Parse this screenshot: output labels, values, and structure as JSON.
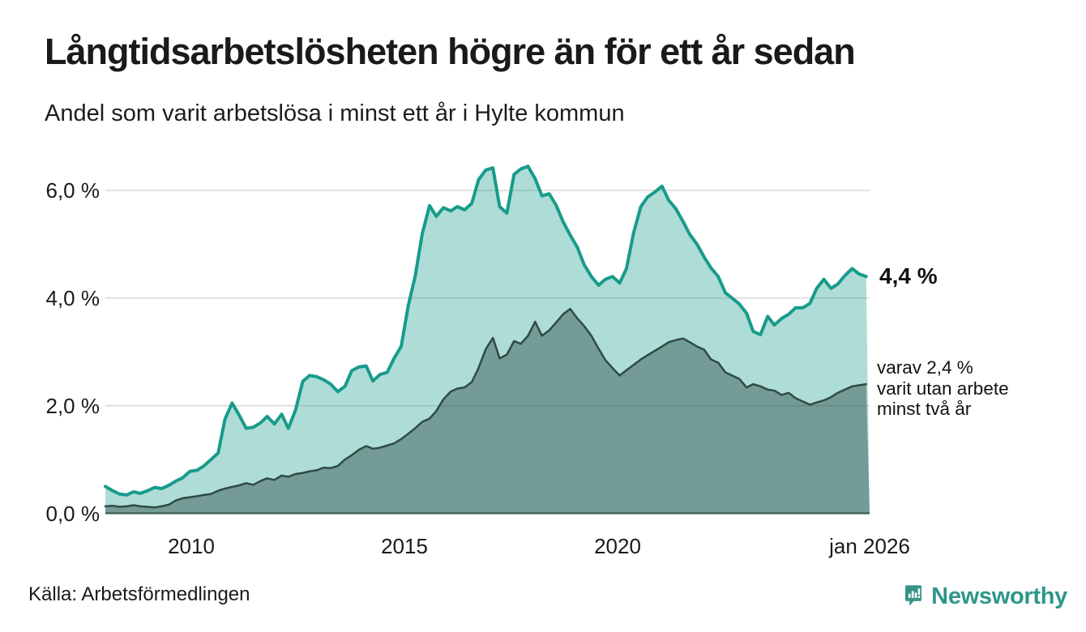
{
  "header": {
    "title": "Långtidsarbetslösheten högre än för ett år sedan",
    "subtitle": "Andel som varit arbetslösa i minst ett år i Hylte kommun"
  },
  "chart_data": {
    "type": "area",
    "title": "Långtidsarbetslösheten högre än för ett år sedan",
    "subtitle": "Andel som varit arbetslösa i minst ett år i Hylte kommun",
    "unit": "%",
    "grid": "horizontal",
    "legend_position": "none",
    "x_axis": {
      "domain": [
        2008.0,
        2026.083
      ],
      "ticks": [
        {
          "value": 2010,
          "label": "2010"
        },
        {
          "value": 2015,
          "label": "2015"
        },
        {
          "value": 2020,
          "label": "2020"
        },
        {
          "value": 2026.04,
          "label": "jan 2026"
        }
      ]
    },
    "y_axis": {
      "range": [
        0,
        6.6
      ],
      "ticks": [
        {
          "value": 0,
          "label": "0,0 %"
        },
        {
          "value": 2,
          "label": "2,0 %"
        },
        {
          "value": 4,
          "label": "4,0 %"
        },
        {
          "value": 6,
          "label": "6,0 %"
        }
      ]
    },
    "annotations": {
      "latest": "4,4 %",
      "secondary1": "varav 2,4 %",
      "secondary2": "varit utan arbete",
      "secondary3": "minst två år"
    },
    "series": [
      {
        "name": "Andel arbetslösa minst ett år",
        "color": "#189b8b",
        "fill_opacity": 0.35,
        "line_width": 4,
        "latest_value": 4.4,
        "points": [
          [
            2008.0,
            0.5
          ],
          [
            2008.17,
            0.42
          ],
          [
            2008.33,
            0.36
          ],
          [
            2008.5,
            0.34
          ],
          [
            2008.67,
            0.4
          ],
          [
            2008.83,
            0.37
          ],
          [
            2009.0,
            0.42
          ],
          [
            2009.17,
            0.48
          ],
          [
            2009.33,
            0.46
          ],
          [
            2009.5,
            0.52
          ],
          [
            2009.67,
            0.6
          ],
          [
            2009.83,
            0.66
          ],
          [
            2010.0,
            0.78
          ],
          [
            2010.17,
            0.8
          ],
          [
            2010.33,
            0.88
          ],
          [
            2010.5,
            1.0
          ],
          [
            2010.67,
            1.12
          ],
          [
            2010.83,
            1.75
          ],
          [
            2011.0,
            2.05
          ],
          [
            2011.17,
            1.82
          ],
          [
            2011.33,
            1.58
          ],
          [
            2011.5,
            1.6
          ],
          [
            2011.67,
            1.68
          ],
          [
            2011.83,
            1.8
          ],
          [
            2012.0,
            1.66
          ],
          [
            2012.17,
            1.84
          ],
          [
            2012.33,
            1.58
          ],
          [
            2012.5,
            1.92
          ],
          [
            2012.67,
            2.45
          ],
          [
            2012.83,
            2.56
          ],
          [
            2013.0,
            2.54
          ],
          [
            2013.17,
            2.48
          ],
          [
            2013.33,
            2.4
          ],
          [
            2013.5,
            2.26
          ],
          [
            2013.67,
            2.36
          ],
          [
            2013.83,
            2.65
          ],
          [
            2014.0,
            2.72
          ],
          [
            2014.17,
            2.74
          ],
          [
            2014.33,
            2.46
          ],
          [
            2014.5,
            2.58
          ],
          [
            2014.67,
            2.62
          ],
          [
            2014.83,
            2.88
          ],
          [
            2015.0,
            3.1
          ],
          [
            2015.17,
            3.87
          ],
          [
            2015.33,
            4.4
          ],
          [
            2015.5,
            5.2
          ],
          [
            2015.67,
            5.72
          ],
          [
            2015.83,
            5.52
          ],
          [
            2016.0,
            5.68
          ],
          [
            2016.17,
            5.62
          ],
          [
            2016.33,
            5.7
          ],
          [
            2016.5,
            5.64
          ],
          [
            2016.67,
            5.76
          ],
          [
            2016.83,
            6.2
          ],
          [
            2017.0,
            6.38
          ],
          [
            2017.17,
            6.42
          ],
          [
            2017.33,
            5.7
          ],
          [
            2017.5,
            5.58
          ],
          [
            2017.67,
            6.3
          ],
          [
            2017.83,
            6.4
          ],
          [
            2018.0,
            6.45
          ],
          [
            2018.17,
            6.22
          ],
          [
            2018.33,
            5.9
          ],
          [
            2018.5,
            5.94
          ],
          [
            2018.67,
            5.72
          ],
          [
            2018.83,
            5.42
          ],
          [
            2019.0,
            5.17
          ],
          [
            2019.17,
            4.94
          ],
          [
            2019.33,
            4.62
          ],
          [
            2019.5,
            4.4
          ],
          [
            2019.67,
            4.24
          ],
          [
            2019.83,
            4.35
          ],
          [
            2020.0,
            4.4
          ],
          [
            2020.17,
            4.28
          ],
          [
            2020.33,
            4.55
          ],
          [
            2020.5,
            5.22
          ],
          [
            2020.67,
            5.7
          ],
          [
            2020.83,
            5.88
          ],
          [
            2021.0,
            5.97
          ],
          [
            2021.17,
            6.08
          ],
          [
            2021.33,
            5.82
          ],
          [
            2021.5,
            5.66
          ],
          [
            2021.67,
            5.42
          ],
          [
            2021.83,
            5.18
          ],
          [
            2022.0,
            5.0
          ],
          [
            2022.17,
            4.76
          ],
          [
            2022.33,
            4.56
          ],
          [
            2022.5,
            4.4
          ],
          [
            2022.67,
            4.1
          ],
          [
            2022.83,
            4.0
          ],
          [
            2023.0,
            3.89
          ],
          [
            2023.17,
            3.72
          ],
          [
            2023.33,
            3.38
          ],
          [
            2023.5,
            3.32
          ],
          [
            2023.67,
            3.66
          ],
          [
            2023.83,
            3.5
          ],
          [
            2024.0,
            3.62
          ],
          [
            2024.17,
            3.7
          ],
          [
            2024.33,
            3.82
          ],
          [
            2024.5,
            3.82
          ],
          [
            2024.67,
            3.9
          ],
          [
            2024.83,
            4.18
          ],
          [
            2025.0,
            4.35
          ],
          [
            2025.17,
            4.18
          ],
          [
            2025.33,
            4.26
          ],
          [
            2025.5,
            4.42
          ],
          [
            2025.67,
            4.55
          ],
          [
            2025.83,
            4.45
          ],
          [
            2026.0,
            4.4
          ]
        ]
      },
      {
        "name": "Varav utan arbete minst två år",
        "color": "#2e4b45",
        "fill_opacity": 0.45,
        "line_width": 2.5,
        "latest_value": 2.4,
        "points": [
          [
            2008.0,
            0.13
          ],
          [
            2008.17,
            0.14
          ],
          [
            2008.33,
            0.12
          ],
          [
            2008.5,
            0.13
          ],
          [
            2008.67,
            0.15
          ],
          [
            2008.83,
            0.13
          ],
          [
            2009.0,
            0.12
          ],
          [
            2009.17,
            0.11
          ],
          [
            2009.33,
            0.13
          ],
          [
            2009.5,
            0.16
          ],
          [
            2009.67,
            0.24
          ],
          [
            2009.83,
            0.28
          ],
          [
            2010.0,
            0.3
          ],
          [
            2010.17,
            0.32
          ],
          [
            2010.33,
            0.34
          ],
          [
            2010.5,
            0.36
          ],
          [
            2010.67,
            0.42
          ],
          [
            2010.83,
            0.46
          ],
          [
            2011.0,
            0.49
          ],
          [
            2011.17,
            0.52
          ],
          [
            2011.33,
            0.56
          ],
          [
            2011.5,
            0.53
          ],
          [
            2011.67,
            0.6
          ],
          [
            2011.83,
            0.65
          ],
          [
            2012.0,
            0.62
          ],
          [
            2012.17,
            0.7
          ],
          [
            2012.33,
            0.68
          ],
          [
            2012.5,
            0.73
          ],
          [
            2012.67,
            0.75
          ],
          [
            2012.83,
            0.78
          ],
          [
            2013.0,
            0.8
          ],
          [
            2013.17,
            0.85
          ],
          [
            2013.33,
            0.84
          ],
          [
            2013.5,
            0.88
          ],
          [
            2013.67,
            1.0
          ],
          [
            2013.83,
            1.08
          ],
          [
            2014.0,
            1.18
          ],
          [
            2014.17,
            1.25
          ],
          [
            2014.33,
            1.2
          ],
          [
            2014.5,
            1.22
          ],
          [
            2014.67,
            1.26
          ],
          [
            2014.83,
            1.3
          ],
          [
            2015.0,
            1.38
          ],
          [
            2015.17,
            1.48
          ],
          [
            2015.33,
            1.58
          ],
          [
            2015.5,
            1.7
          ],
          [
            2015.67,
            1.76
          ],
          [
            2015.83,
            1.9
          ],
          [
            2016.0,
            2.12
          ],
          [
            2016.17,
            2.26
          ],
          [
            2016.33,
            2.32
          ],
          [
            2016.5,
            2.34
          ],
          [
            2016.67,
            2.44
          ],
          [
            2016.83,
            2.7
          ],
          [
            2017.0,
            3.05
          ],
          [
            2017.17,
            3.26
          ],
          [
            2017.33,
            2.88
          ],
          [
            2017.5,
            2.95
          ],
          [
            2017.67,
            3.2
          ],
          [
            2017.83,
            3.15
          ],
          [
            2018.0,
            3.3
          ],
          [
            2018.17,
            3.56
          ],
          [
            2018.33,
            3.3
          ],
          [
            2018.5,
            3.4
          ],
          [
            2018.67,
            3.55
          ],
          [
            2018.83,
            3.7
          ],
          [
            2019.0,
            3.8
          ],
          [
            2019.17,
            3.62
          ],
          [
            2019.33,
            3.48
          ],
          [
            2019.5,
            3.3
          ],
          [
            2019.67,
            3.06
          ],
          [
            2019.83,
            2.85
          ],
          [
            2020.0,
            2.7
          ],
          [
            2020.17,
            2.56
          ],
          [
            2020.33,
            2.66
          ],
          [
            2020.5,
            2.76
          ],
          [
            2020.67,
            2.86
          ],
          [
            2020.83,
            2.94
          ],
          [
            2021.0,
            3.02
          ],
          [
            2021.17,
            3.1
          ],
          [
            2021.33,
            3.18
          ],
          [
            2021.5,
            3.22
          ],
          [
            2021.67,
            3.25
          ],
          [
            2021.83,
            3.18
          ],
          [
            2022.0,
            3.1
          ],
          [
            2022.17,
            3.04
          ],
          [
            2022.33,
            2.86
          ],
          [
            2022.5,
            2.8
          ],
          [
            2022.67,
            2.62
          ],
          [
            2022.83,
            2.56
          ],
          [
            2023.0,
            2.5
          ],
          [
            2023.17,
            2.34
          ],
          [
            2023.33,
            2.4
          ],
          [
            2023.5,
            2.36
          ],
          [
            2023.67,
            2.3
          ],
          [
            2023.83,
            2.28
          ],
          [
            2024.0,
            2.2
          ],
          [
            2024.17,
            2.24
          ],
          [
            2024.33,
            2.14
          ],
          [
            2024.5,
            2.08
          ],
          [
            2024.67,
            2.02
          ],
          [
            2024.83,
            2.06
          ],
          [
            2025.0,
            2.1
          ],
          [
            2025.17,
            2.16
          ],
          [
            2025.33,
            2.24
          ],
          [
            2025.5,
            2.3
          ],
          [
            2025.67,
            2.36
          ],
          [
            2025.83,
            2.38
          ],
          [
            2026.0,
            2.4
          ]
        ]
      }
    ]
  },
  "footer": {
    "source": "Källa: Arbetsförmedlingen",
    "logo_text": "Newsworthy"
  },
  "colors": {
    "accent_teal": "#189b8b",
    "dark_series": "#2e4b45",
    "gridline": "#d8d8d8",
    "baseline": "#34524c",
    "text": "#1a1a1a",
    "logo_teal": "#2e968a",
    "logo_badge": "#379389"
  }
}
